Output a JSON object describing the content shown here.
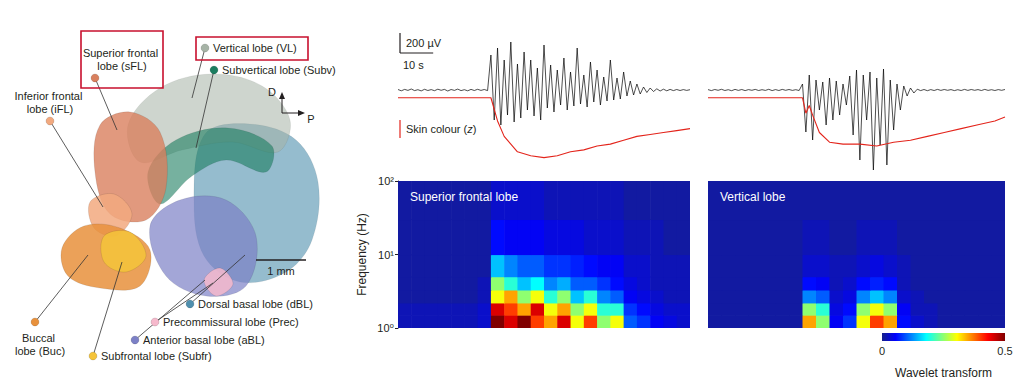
{
  "diagram": {
    "labels": [
      {
        "text": "Superior frontal lobe (sFL)",
        "color": "#d9805e",
        "highlighted": true
      },
      {
        "text": "Vertical lobe (VL)",
        "color": "#a6b3a6",
        "highlighted": true
      },
      {
        "text": "Subvertical lobe (Subv)",
        "color": "#1b7d5f",
        "highlighted": false
      },
      {
        "text": "Inferior frontal lobe (iFL)",
        "color": "#f2a97f",
        "highlighted": false
      },
      {
        "text": "Buccal lobe (Buc)",
        "color": "#e8913c",
        "highlighted": false
      },
      {
        "text": "Subfrontal lobe (Subfr)",
        "color": "#f5c43a",
        "highlighted": false
      },
      {
        "text": "Precommissural lobe (Prec)",
        "color": "#f6b9cc",
        "highlighted": false
      },
      {
        "text": "Anterior basal lobe (aBL)",
        "color": "#7c80c6",
        "highlighted": false
      },
      {
        "text": "Dorsal basal lobe (dBL)",
        "color": "#4f8fae",
        "highlighted": false
      }
    ],
    "orientation": {
      "dorsal": "D",
      "posterior": "P"
    },
    "scale_bar": "1 mm"
  },
  "chart_data": [
    {
      "type": "line",
      "tick_labels": false,
      "xlim": [
        0,
        88
      ],
      "ylim": [
        -850,
        550
      ],
      "y2lim": [
        -4,
        3.25
      ],
      "scale_bars": [
        {
          "axis": "y",
          "value": 200,
          "label": "200 µV"
        },
        {
          "axis": "x",
          "value": 10,
          "label": "10 s"
        }
      ],
      "series": [
        {
          "color": "#000000",
          "x": [
            0,
            1,
            2,
            3,
            4,
            5,
            6,
            7,
            8,
            9,
            10,
            11,
            12,
            13,
            14,
            15,
            16,
            17,
            18,
            19,
            20,
            21,
            22,
            23,
            24,
            25,
            26,
            27,
            28,
            29,
            30,
            31,
            32,
            33,
            34,
            35,
            36,
            37,
            38,
            39,
            40,
            41,
            42,
            43,
            44,
            45,
            46,
            47,
            48,
            49,
            50,
            51,
            52,
            53,
            54,
            55,
            56,
            57,
            58,
            59,
            60,
            61,
            62,
            63,
            64,
            65,
            66,
            67,
            68,
            69,
            70,
            71,
            72,
            73,
            74,
            75,
            76,
            77,
            78,
            79,
            80,
            81,
            82,
            83,
            84,
            85,
            86,
            87,
            88
          ],
          "values": [
            5,
            -8,
            6,
            -4,
            10,
            -6,
            3,
            -9,
            7,
            -5,
            4,
            -7,
            8,
            -3,
            6,
            -10,
            5,
            -4,
            9,
            -6,
            3,
            -8,
            6,
            -5,
            7,
            -4,
            5,
            -6,
            350,
            -300,
            420,
            -350,
            300,
            -250,
            480,
            -320,
            260,
            -280,
            380,
            -200,
            300,
            -260,
            220,
            -300,
            450,
            -180,
            250,
            -220,
            200,
            -150,
            320,
            -200,
            180,
            -160,
            420,
            -140,
            150,
            -170,
            280,
            -120,
            200,
            -150,
            130,
            -110,
            300,
            -100,
            120,
            -90,
            180,
            -60,
            90,
            -50,
            60,
            -40,
            30,
            -25,
            20,
            -15,
            12,
            -10,
            8,
            -8,
            6,
            -6,
            5,
            -5,
            4,
            -4,
            3
          ]
        },
        {
          "name": "Skin colour (z)",
          "color": "#e3241b",
          "axis": "y2",
          "x": [
            0,
            28,
            30,
            32,
            34,
            36,
            40,
            44,
            48,
            52,
            56,
            60,
            64,
            68,
            72,
            76,
            80,
            84,
            88
          ],
          "values": [
            0,
            0,
            -1.2,
            -2.0,
            -2.4,
            -2.8,
            -3.0,
            -3.1,
            -3.0,
            -2.8,
            -2.7,
            -2.5,
            -2.4,
            -2.2,
            -2.0,
            -1.9,
            -1.8,
            -1.7,
            -1.6
          ]
        }
      ]
    },
    {
      "type": "line",
      "tick_labels": false,
      "xlim": [
        0,
        88
      ],
      "ylim": [
        -850,
        550
      ],
      "y2lim": [
        -4,
        3.25
      ],
      "series": [
        {
          "color": "#000000",
          "x": [
            0,
            1,
            2,
            3,
            4,
            5,
            6,
            7,
            8,
            9,
            10,
            11,
            12,
            13,
            14,
            15,
            16,
            17,
            18,
            19,
            20,
            21,
            22,
            23,
            24,
            25,
            26,
            27,
            28,
            29,
            30,
            31,
            32,
            33,
            34,
            35,
            36,
            37,
            38,
            39,
            40,
            41,
            42,
            43,
            44,
            45,
            46,
            47,
            48,
            49,
            50,
            51,
            52,
            53,
            54,
            55,
            56,
            57,
            58,
            59,
            60,
            61,
            62,
            63,
            64,
            65,
            66,
            67,
            68,
            69,
            70,
            71,
            72,
            73,
            74,
            75,
            76,
            77,
            78,
            79,
            80,
            81,
            82,
            83,
            84,
            85,
            86,
            87,
            88
          ],
          "values": [
            4,
            -6,
            5,
            -3,
            7,
            -5,
            3,
            -7,
            6,
            -4,
            5,
            -6,
            4,
            -3,
            6,
            -5,
            3,
            -4,
            7,
            -6,
            4,
            -5,
            6,
            -3,
            5,
            -4,
            3,
            -5,
            60,
            -420,
            150,
            -500,
            100,
            -200,
            80,
            -350,
            120,
            -300,
            90,
            -250,
            60,
            -150,
            140,
            -450,
            200,
            -700,
            150,
            -300,
            180,
            -800,
            120,
            -550,
            210,
            -750,
            100,
            -400,
            60,
            -200,
            40,
            -60,
            20,
            -30,
            8,
            -6,
            5,
            -7,
            4,
            -5,
            6,
            -4,
            5,
            -3,
            4,
            -6,
            3,
            -5,
            6,
            -4,
            5,
            -3,
            4,
            -5,
            6,
            -4,
            3,
            -5,
            4,
            -3,
            5
          ]
        },
        {
          "color": "#e3241b",
          "axis": "y2",
          "x": [
            0,
            28,
            29,
            30,
            31,
            33,
            36,
            40,
            45,
            50,
            55,
            60,
            65,
            70,
            75,
            80,
            85,
            88
          ],
          "values": [
            0,
            0,
            -0.8,
            -0.4,
            -0.9,
            -1.8,
            -2.3,
            -2.4,
            -2.4,
            -2.5,
            -2.3,
            -2.2,
            -2.0,
            -1.8,
            -1.6,
            -1.4,
            -1.2,
            -1.0
          ]
        }
      ]
    },
    {
      "type": "heatmap",
      "title": "Superior frontal lobe",
      "ylabel": "Frequency (Hz)",
      "log": "y",
      "tick_labels": "y",
      "xlim": [
        0,
        88
      ],
      "ylim": [
        1,
        100
      ],
      "yticks": [
        {
          "value": 1,
          "label": "10⁰"
        },
        {
          "value": 10,
          "label": "10¹"
        },
        {
          "value": 100,
          "label": "10²"
        }
      ],
      "x_edges": [
        0,
        4,
        8,
        12,
        16,
        20,
        24,
        28,
        32,
        36,
        40,
        44,
        48,
        52,
        56,
        60,
        64,
        68,
        72,
        76,
        80,
        84,
        88
      ],
      "y_edges": [
        1,
        1.5,
        2.2,
        3.3,
        5,
        10,
        30,
        100
      ],
      "values": [
        [
          0.02,
          0.02,
          0.02,
          0.02,
          0.02,
          0.02,
          0.03,
          0.5,
          0.45,
          0.5,
          0.4,
          0.35,
          0.45,
          0.3,
          0.4,
          0.25,
          0.3,
          0.1,
          0.08,
          0.05,
          0.04,
          0.03
        ],
        [
          0.02,
          0.02,
          0.02,
          0.02,
          0.02,
          0.02,
          0.03,
          0.45,
          0.4,
          0.35,
          0.45,
          0.3,
          0.35,
          0.25,
          0.3,
          0.2,
          0.2,
          0.08,
          0.06,
          0.04,
          0.03,
          0.03
        ],
        [
          0.01,
          0.01,
          0.01,
          0.01,
          0.01,
          0.01,
          0.02,
          0.3,
          0.35,
          0.25,
          0.3,
          0.2,
          0.25,
          0.15,
          0.2,
          0.12,
          0.1,
          0.05,
          0.04,
          0.03,
          0.02,
          0.02
        ],
        [
          0.01,
          0.01,
          0.01,
          0.01,
          0.01,
          0.01,
          0.02,
          0.25,
          0.2,
          0.15,
          0.18,
          0.12,
          0.14,
          0.1,
          0.1,
          0.08,
          0.06,
          0.04,
          0.03,
          0.02,
          0.02,
          0.02
        ],
        [
          0.01,
          0.01,
          0.01,
          0.01,
          0.01,
          0.01,
          0.01,
          0.15,
          0.12,
          0.1,
          0.1,
          0.08,
          0.08,
          0.07,
          0.06,
          0.05,
          0.05,
          0.03,
          0.03,
          0.02,
          0.02,
          0.02
        ],
        [
          0.01,
          0.01,
          0.01,
          0.01,
          0.01,
          0.01,
          0.01,
          0.06,
          0.05,
          0.05,
          0.05,
          0.04,
          0.04,
          0.04,
          0.03,
          0.03,
          0.03,
          0.02,
          0.02,
          0.02,
          0.01,
          0.01
        ],
        [
          0.01,
          0.01,
          0.01,
          0.01,
          0.01,
          0.01,
          0.01,
          0.03,
          0.03,
          0.03,
          0.03,
          0.02,
          0.02,
          0.02,
          0.02,
          0.02,
          0.02,
          0.01,
          0.01,
          0.01,
          0.01,
          0.01
        ]
      ]
    },
    {
      "type": "heatmap",
      "title": "Vertical lobe",
      "log": "y",
      "tick_labels": false,
      "xlim": [
        0,
        88
      ],
      "ylim": [
        1,
        100
      ],
      "x_edges": [
        0,
        4,
        8,
        12,
        16,
        20,
        24,
        28,
        32,
        36,
        40,
        44,
        48,
        52,
        56,
        60,
        64,
        68,
        72,
        76,
        80,
        84,
        88
      ],
      "y_edges": [
        1,
        1.5,
        2.2,
        3.3,
        5,
        10,
        30,
        100
      ],
      "values": [
        [
          0.01,
          0.01,
          0.01,
          0.01,
          0.01,
          0.01,
          0.01,
          0.35,
          0.25,
          0.05,
          0.08,
          0.3,
          0.4,
          0.35,
          0.06,
          0.03,
          0.02,
          0.01,
          0.01,
          0.01,
          0.01,
          0.01
        ],
        [
          0.01,
          0.01,
          0.01,
          0.01,
          0.01,
          0.01,
          0.01,
          0.25,
          0.2,
          0.04,
          0.06,
          0.25,
          0.3,
          0.25,
          0.05,
          0.02,
          0.02,
          0.01,
          0.01,
          0.01,
          0.01,
          0.01
        ],
        [
          0.01,
          0.01,
          0.01,
          0.01,
          0.01,
          0.01,
          0.01,
          0.12,
          0.1,
          0.03,
          0.04,
          0.12,
          0.15,
          0.12,
          0.03,
          0.02,
          0.01,
          0.01,
          0.01,
          0.01,
          0.01,
          0.01
        ],
        [
          0.01,
          0.01,
          0.01,
          0.01,
          0.01,
          0.01,
          0.01,
          0.06,
          0.05,
          0.02,
          0.03,
          0.06,
          0.07,
          0.06,
          0.02,
          0.01,
          0.01,
          0.01,
          0.01,
          0.01,
          0.01,
          0.01
        ],
        [
          0.01,
          0.01,
          0.01,
          0.01,
          0.01,
          0.01,
          0.01,
          0.03,
          0.03,
          0.02,
          0.02,
          0.03,
          0.04,
          0.03,
          0.02,
          0.01,
          0.01,
          0.01,
          0.01,
          0.01,
          0.01,
          0.01
        ],
        [
          0.01,
          0.01,
          0.01,
          0.01,
          0.01,
          0.01,
          0.01,
          0.02,
          0.02,
          0.01,
          0.01,
          0.02,
          0.02,
          0.02,
          0.01,
          0.01,
          0.01,
          0.01,
          0.01,
          0.01,
          0.01,
          0.01
        ],
        [
          0.01,
          0.01,
          0.01,
          0.01,
          0.01,
          0.01,
          0.01,
          0.01,
          0.01,
          0.01,
          0.01,
          0.01,
          0.01,
          0.01,
          0.01,
          0.01,
          0.01,
          0.01,
          0.01,
          0.01,
          0.01,
          0.01
        ]
      ]
    }
  ],
  "colorbar": {
    "label": "Wavelet transform",
    "range": [
      0,
      0.5
    ],
    "ticks": [
      0,
      0.5
    ]
  }
}
